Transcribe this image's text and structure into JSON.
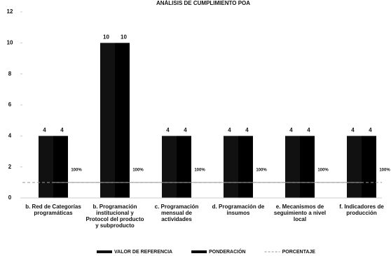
{
  "chart_data": {
    "type": "bar",
    "title": "ANÁLISIS DE CUMPLIMIENTO POA",
    "categories": [
      "b. Red de Categorías programáticas",
      "b. Programación institucional y Protocol del producto y subproducto",
      "c. Programación mensual de actividades",
      "d. Programación de insumos",
      "e. Mecanismos de seguimiento a nivel local",
      "f. Indicadores de producción"
    ],
    "series": [
      {
        "name": "VALOR DE REFERENCIA",
        "color": "#111111",
        "values": [
          4,
          10,
          4,
          4,
          4,
          4
        ]
      },
      {
        "name": "PONDERACIÓN",
        "color": "#000000",
        "values": [
          4,
          10,
          4,
          4,
          4,
          4
        ]
      },
      {
        "name": "PORCENTAJE",
        "color": "#999999",
        "type": "line",
        "values": [
          1,
          1,
          1,
          1,
          1,
          1
        ],
        "value_labels": [
          "100%",
          "100%",
          "100%",
          "100%",
          "100%",
          "100%"
        ]
      }
    ],
    "ylim": [
      0,
      12
    ],
    "yticks": [
      0,
      2,
      4,
      6,
      8,
      10,
      12
    ]
  }
}
